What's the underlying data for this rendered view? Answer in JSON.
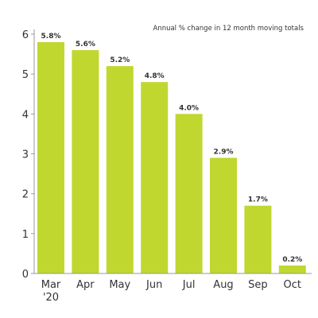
{
  "chart_data": {
    "type": "bar",
    "title": "",
    "subtitle": "Annual % change in 12 month moving totals",
    "xlabel": "",
    "ylabel": "",
    "categories": [
      "Mar\n'20",
      "Apr",
      "May",
      "Jun",
      "Jul",
      "Aug",
      "Sep",
      "Oct"
    ],
    "values": [
      5.8,
      5.6,
      5.2,
      4.8,
      4.0,
      2.9,
      1.7,
      0.2
    ],
    "data_labels": [
      "5.8%",
      "5.6%",
      "5.2%",
      "4.8%",
      "4.0%",
      "2.9%",
      "1.7%",
      "0.2%"
    ],
    "ylim": [
      0,
      6
    ],
    "yticks": [
      0,
      1,
      2,
      3,
      4,
      5,
      6
    ],
    "grid": false,
    "legend": "none",
    "bar_color": "#c0d730",
    "axis_color": "#999999"
  }
}
